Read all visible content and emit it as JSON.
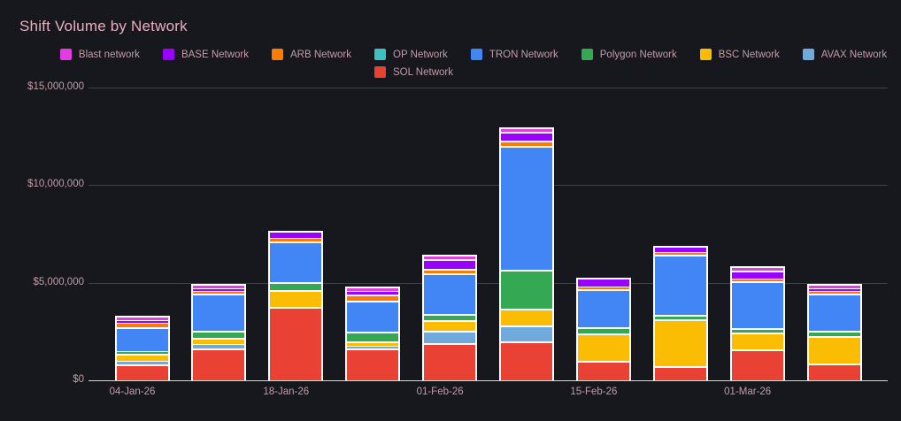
{
  "title": "Shift Volume by Network",
  "colors": {
    "background": "#16181d",
    "title_text": "#e9aebb",
    "axis_text": "#c49ba6",
    "gridline": "#3e4046",
    "baseline": "#d6d6d6",
    "bar_border": "#ffffff"
  },
  "chart_data": {
    "type": "bar",
    "stacked": true,
    "title": "Shift Volume by Network",
    "xlabel": "",
    "ylabel": "",
    "ylim": [
      0,
      15000000
    ],
    "grid": true,
    "legend_position": "top",
    "categories": [
      "04-Jan-26",
      "",
      "18-Jan-26",
      "",
      "01-Feb-26",
      "",
      "15-Feb-26",
      "",
      "01-Mar-26",
      ""
    ],
    "x_ticks": [
      {
        "bar_index": 0,
        "label": "04-Jan-26"
      },
      {
        "bar_index": 2,
        "label": "18-Jan-26"
      },
      {
        "bar_index": 4,
        "label": "01-Feb-26"
      },
      {
        "bar_index": 6,
        "label": "15-Feb-26"
      },
      {
        "bar_index": 8,
        "label": "01-Mar-26"
      }
    ],
    "y_ticks": [
      {
        "label": "$15,000,000",
        "value": 15000000
      },
      {
        "label": "$10,000,000",
        "value": 10000000
      },
      {
        "label": "$5,000,000",
        "value": 5000000
      },
      {
        "label": "$0",
        "value": 0
      }
    ],
    "legend_rows": [
      [
        "Blast network",
        "BASE Network",
        "ARB Network",
        "OP Network",
        "TRON Network",
        "Polygon Network",
        "BSC Network",
        "AVAX Network"
      ],
      [
        "SOL Network"
      ]
    ],
    "stack_order_bottom_to_top": [
      "SOL Network",
      "AVAX Network",
      "BSC Network",
      "Polygon Network",
      "TRON Network",
      "OP Network",
      "ARB Network",
      "BASE Network",
      "Blast network"
    ],
    "series": [
      {
        "name": "Blast network",
        "color": "#e23ce2",
        "values": [
          100000,
          120000,
          0,
          80000,
          60000,
          100000,
          0,
          0,
          50000,
          120000
        ]
      },
      {
        "name": "BASE Network",
        "color": "#9903fc",
        "values": [
          160000,
          120000,
          300000,
          160000,
          500000,
          480000,
          380000,
          250000,
          420000,
          130000
        ]
      },
      {
        "name": "ARB Network",
        "color": "#fe7b03",
        "values": [
          220000,
          130000,
          180000,
          340000,
          250000,
          250000,
          160000,
          100000,
          100000,
          130000
        ]
      },
      {
        "name": "OP Network",
        "color": "#3fc0c0",
        "values": [
          0,
          0,
          0,
          0,
          0,
          0,
          0,
          0,
          0,
          0
        ]
      },
      {
        "name": "TRON Network",
        "color": "#4285f4",
        "values": [
          1200000,
          1900000,
          2050000,
          1550000,
          2050000,
          6350000,
          1950000,
          3050000,
          2400000,
          1900000
        ]
      },
      {
        "name": "Polygon Network",
        "color": "#34a853",
        "values": [
          120000,
          330000,
          420000,
          500000,
          320000,
          2000000,
          300000,
          250000,
          240000,
          270000
        ]
      },
      {
        "name": "BSC Network",
        "color": "#fbbc04",
        "values": [
          400000,
          360000,
          880000,
          260000,
          580000,
          860000,
          1400000,
          2400000,
          850000,
          1380000
        ]
      },
      {
        "name": "AVAX Network",
        "color": "#70a9dc",
        "values": [
          180000,
          190000,
          0,
          60000,
          620000,
          820000,
          0,
          0,
          0,
          0
        ]
      },
      {
        "name": "SOL Network",
        "color": "#e94235",
        "values": [
          800000,
          1650000,
          3750000,
          1620000,
          1900000,
          2000000,
          1000000,
          720000,
          1580000,
          880000
        ]
      }
    ]
  }
}
